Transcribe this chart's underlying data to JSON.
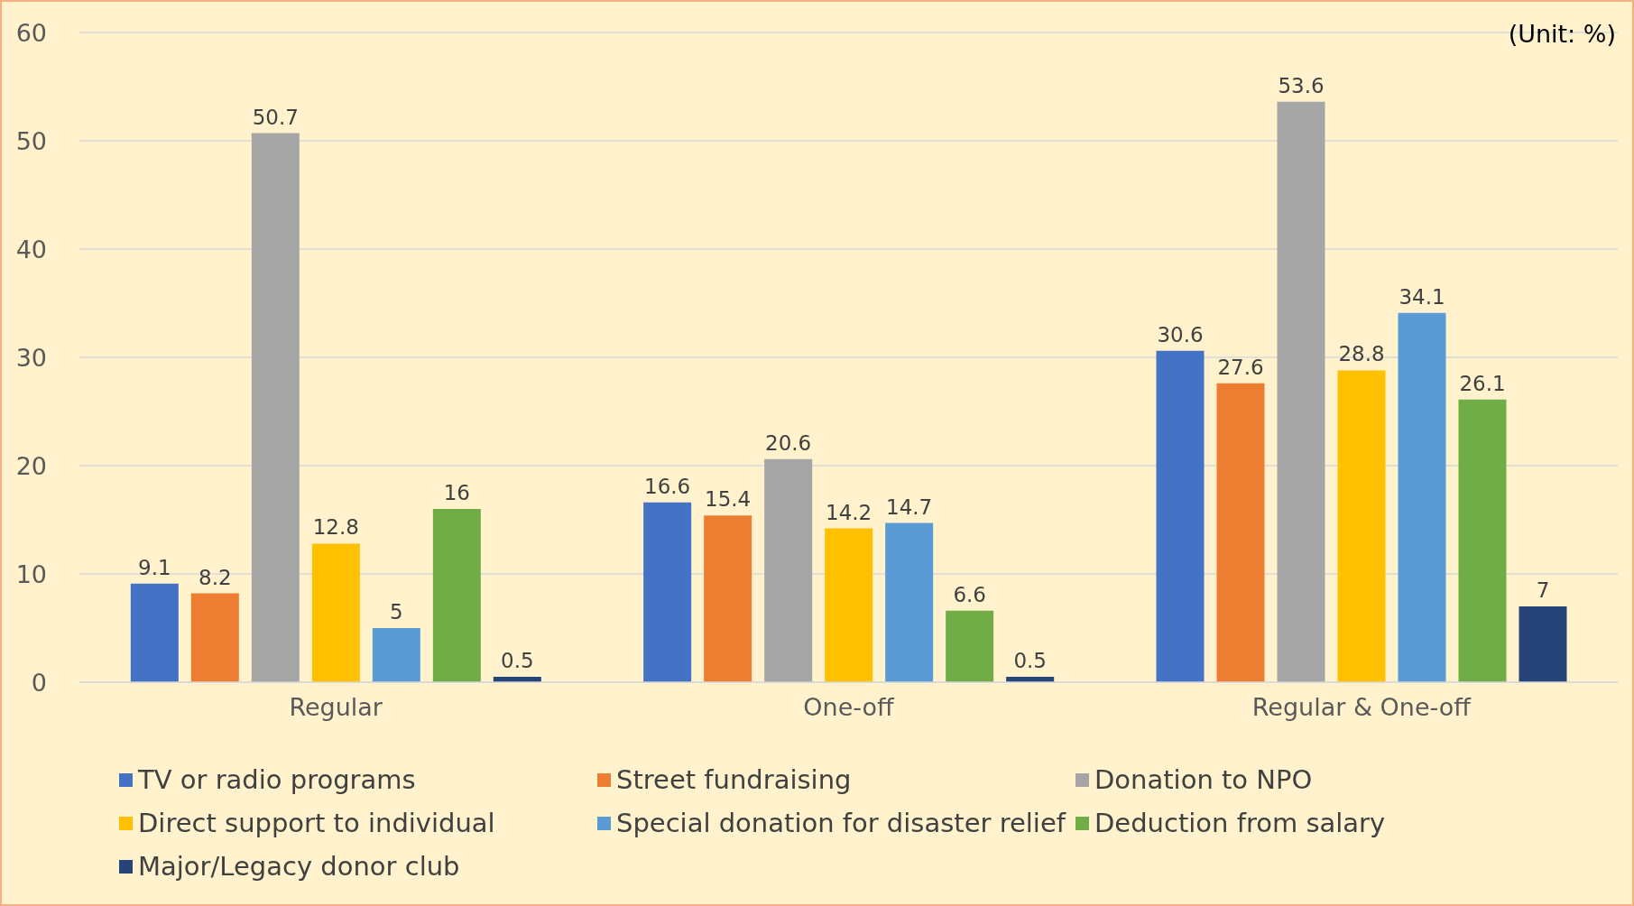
{
  "chart_data": {
    "type": "bar",
    "categories": [
      "Regular",
      "One-off",
      "Regular & One-off"
    ],
    "series": [
      {
        "name": "TV or radio programs",
        "color": "#4472c4",
        "values": [
          9.1,
          16.6,
          30.6
        ]
      },
      {
        "name": "Street fundraising",
        "color": "#ed7d31",
        "values": [
          8.2,
          15.4,
          27.6
        ]
      },
      {
        "name": "Donation to NPO",
        "color": "#a5a5a5",
        "values": [
          50.7,
          20.6,
          53.6
        ]
      },
      {
        "name": "Direct support to individual",
        "color": "#ffc000",
        "values": [
          12.8,
          14.2,
          28.8
        ]
      },
      {
        "name": "Special donation for disaster relief",
        "color": "#5b9bd5",
        "values": [
          5,
          14.7,
          34.1
        ]
      },
      {
        "name": "Deduction from salary",
        "color": "#70ad47",
        "values": [
          16,
          6.6,
          26.1
        ]
      },
      {
        "name": "Major/Legacy donor club",
        "color": "#264478",
        "values": [
          0.5,
          0.5,
          7
        ]
      }
    ],
    "ylim": [
      0,
      60
    ],
    "yticks": [
      0,
      10,
      20,
      30,
      40,
      50,
      60
    ],
    "grid": "y",
    "legend": "bottom",
    "data_labels": true,
    "annotations": [
      "(Unit: %)"
    ]
  }
}
